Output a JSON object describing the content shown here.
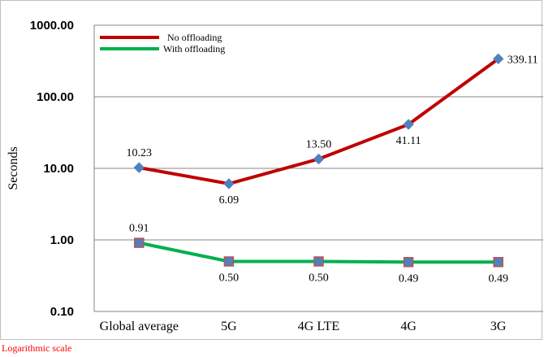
{
  "chart_data": {
    "type": "line",
    "categories": [
      "Global average",
      "5G",
      "4G LTE",
      "4G",
      "3G"
    ],
    "series": [
      {
        "name": "No offloading",
        "values": [
          10.23,
          6.09,
          13.5,
          41.11,
          339.11
        ],
        "labels": [
          "10.23",
          "6.09",
          "13.50",
          "41.11",
          "339.11"
        ],
        "label_positions": [
          "above",
          "below",
          "above",
          "below",
          "right"
        ],
        "color": "#c00000",
        "marker": "diamond",
        "marker_color": "#4f81bd"
      },
      {
        "name": "With offloading",
        "values": [
          0.91,
          0.5,
          0.5,
          0.49,
          0.49
        ],
        "labels": [
          "0.91",
          "0.50",
          "0.50",
          "0.49",
          "0.49"
        ],
        "label_positions": [
          "above",
          "below",
          "below",
          "below",
          "below"
        ],
        "color": "#00b050",
        "marker": "square",
        "marker_color": "#4f81bd",
        "marker_edge": "#c0504d"
      }
    ],
    "ylabel": "Seconds",
    "xlabel": "",
    "yscale": "log",
    "ylim": [
      0.1,
      1000
    ],
    "yticks": [
      "0.10",
      "1.00",
      "10.00",
      "100.00",
      "1000.00"
    ],
    "grid": "horizontal",
    "legend": "top-left"
  },
  "note": "Logarithmic scale"
}
